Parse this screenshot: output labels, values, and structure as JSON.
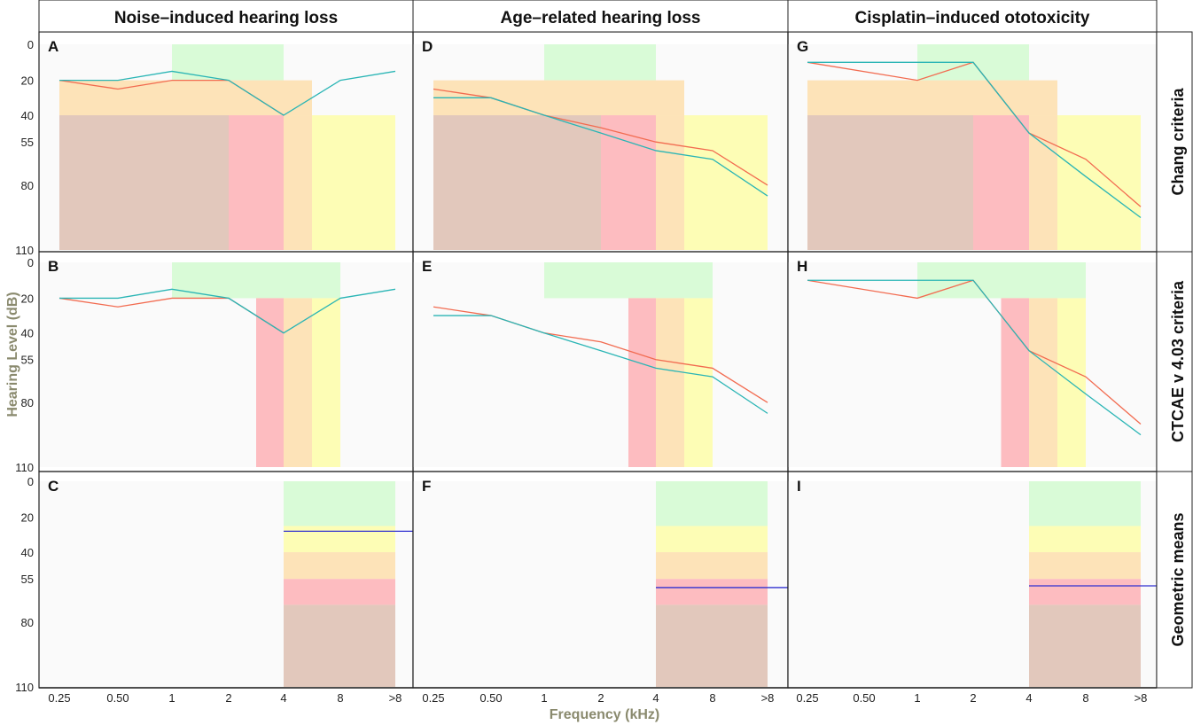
{
  "figure": {
    "column_titles": [
      "Noise–induced hearing loss",
      "Age–related hearing loss",
      "Cisplatin–induced ototoxicity"
    ],
    "row_titles": [
      "Chang criteria",
      "CTCAE v 4.03 criteria",
      "Geometric means"
    ],
    "y_axis_title": "Hearing Level (dB)",
    "x_axis_title": "Frequency (kHz)",
    "x_ticks": [
      "0.25",
      "0.50",
      "1",
      "2",
      "4",
      "8",
      ">8"
    ],
    "y_ticks": [
      "0",
      "20",
      "40",
      "55",
      "80",
      "110"
    ],
    "colors": {
      "green": "#d9fbd7",
      "yellow": "#fdfdb5",
      "orange": "#fde3b8",
      "red": "#fdbcc0",
      "brown": "#e2c8bc",
      "panel_bg": "#fafafa",
      "line_red": "#f26b50",
      "line_teal": "#2ab5b5",
      "line_blue": "#3030d0"
    }
  },
  "chart_data": [
    {
      "panel": "A",
      "type": "line",
      "row": 0,
      "col": 0,
      "x": [
        "0.25",
        "0.50",
        "1",
        "2",
        "4",
        "8",
        ">8"
      ],
      "series": [
        {
          "color": "red",
          "values": [
            20,
            25,
            20,
            20,
            40,
            null,
            null
          ]
        },
        {
          "color": "teal",
          "values": [
            20,
            20,
            15,
            20,
            40,
            20,
            15
          ]
        }
      ],
      "bands": [
        {
          "x0": "1",
          "x1": "4",
          "y0": 0,
          "y1": 20,
          "color": "green"
        },
        {
          "x0": "0.25",
          "x1": "4/8",
          "y0": 20,
          "y1": 40,
          "color": "orange"
        },
        {
          "x0": "0.25",
          "x1": ">8",
          "y0": 40,
          "y1": 110,
          "color": "yellow"
        },
        {
          "x0": "0.25",
          "x1": "4/8",
          "y0": 40,
          "y1": 110,
          "color": "orange"
        },
        {
          "x0": "2",
          "x1": "4",
          "y0": 40,
          "y1": 110,
          "color": "red"
        },
        {
          "x0": "0.25",
          "x1": "2",
          "y0": 40,
          "y1": 110,
          "color": "brown"
        }
      ]
    },
    {
      "panel": "D",
      "type": "line",
      "row": 0,
      "col": 1,
      "x": [
        "0.25",
        "0.50",
        "1",
        "2",
        "4",
        "8",
        ">8"
      ],
      "series": [
        {
          "color": "red",
          "values": [
            25,
            30,
            40,
            47,
            55,
            60,
            80
          ]
        },
        {
          "color": "teal",
          "values": [
            30,
            30,
            40,
            50,
            60,
            65,
            85
          ]
        }
      ],
      "bands": [
        {
          "x0": "1",
          "x1": "4",
          "y0": 0,
          "y1": 20,
          "color": "green"
        },
        {
          "x0": "0.25",
          "x1": "4/8",
          "y0": 20,
          "y1": 40,
          "color": "orange"
        },
        {
          "x0": "0.25",
          "x1": ">8",
          "y0": 40,
          "y1": 110,
          "color": "yellow"
        },
        {
          "x0": "0.25",
          "x1": "4/8",
          "y0": 40,
          "y1": 110,
          "color": "orange"
        },
        {
          "x0": "2",
          "x1": "4",
          "y0": 40,
          "y1": 110,
          "color": "red"
        },
        {
          "x0": "0.25",
          "x1": "2",
          "y0": 40,
          "y1": 110,
          "color": "brown"
        }
      ]
    },
    {
      "panel": "G",
      "type": "line",
      "row": 0,
      "col": 2,
      "x": [
        "0.25",
        "0.50",
        "1",
        "2",
        "4",
        "8",
        ">8"
      ],
      "series": [
        {
          "color": "red",
          "values": [
            10,
            null,
            20,
            10,
            50,
            65,
            90
          ]
        },
        {
          "color": "teal",
          "values": [
            10,
            null,
            10,
            10,
            50,
            75,
            95
          ]
        }
      ],
      "bands": [
        {
          "x0": "1",
          "x1": "4",
          "y0": 0,
          "y1": 20,
          "color": "green"
        },
        {
          "x0": "0.25",
          "x1": "4/8",
          "y0": 20,
          "y1": 40,
          "color": "orange"
        },
        {
          "x0": "0.25",
          "x1": ">8",
          "y0": 40,
          "y1": 110,
          "color": "yellow"
        },
        {
          "x0": "0.25",
          "x1": "4/8",
          "y0": 40,
          "y1": 110,
          "color": "orange"
        },
        {
          "x0": "2",
          "x1": "4",
          "y0": 40,
          "y1": 110,
          "color": "red"
        },
        {
          "x0": "0.25",
          "x1": "2",
          "y0": 40,
          "y1": 110,
          "color": "brown"
        }
      ]
    },
    {
      "panel": "B",
      "type": "line",
      "row": 1,
      "col": 0,
      "x": [
        "0.25",
        "0.50",
        "1",
        "2",
        "4",
        "8",
        ">8"
      ],
      "series": [
        {
          "color": "red",
          "values": [
            20,
            25,
            20,
            20,
            40,
            null,
            null
          ]
        },
        {
          "color": "teal",
          "values": [
            20,
            20,
            15,
            20,
            40,
            20,
            15
          ]
        }
      ],
      "bands": [
        {
          "x0": "1",
          "x1": "8",
          "y0": 0,
          "y1": 20,
          "color": "green"
        },
        {
          "x0": "2/4",
          "x1": "8",
          "y0": 20,
          "y1": 110,
          "color": "yellow"
        },
        {
          "x0": "2/4",
          "x1": "4/8",
          "y0": 20,
          "y1": 110,
          "color": "orange"
        },
        {
          "x0": "2/4",
          "x1": "4",
          "y0": 20,
          "y1": 110,
          "color": "red"
        }
      ]
    },
    {
      "panel": "E",
      "type": "line",
      "row": 1,
      "col": 1,
      "x": [
        "0.25",
        "0.50",
        "1",
        "2",
        "4",
        "8",
        ">8"
      ],
      "series": [
        {
          "color": "red",
          "values": [
            25,
            30,
            40,
            45,
            55,
            60,
            80
          ]
        },
        {
          "color": "teal",
          "values": [
            30,
            30,
            40,
            50,
            60,
            65,
            85
          ]
        }
      ],
      "bands": [
        {
          "x0": "1",
          "x1": "8",
          "y0": 0,
          "y1": 20,
          "color": "green"
        },
        {
          "x0": "2/4",
          "x1": "8",
          "y0": 20,
          "y1": 110,
          "color": "yellow"
        },
        {
          "x0": "2/4",
          "x1": "4/8",
          "y0": 20,
          "y1": 110,
          "color": "orange"
        },
        {
          "x0": "2/4",
          "x1": "4",
          "y0": 20,
          "y1": 110,
          "color": "red"
        }
      ]
    },
    {
      "panel": "H",
      "type": "line",
      "row": 1,
      "col": 2,
      "x": [
        "0.25",
        "0.50",
        "1",
        "2",
        "4",
        "8",
        ">8"
      ],
      "series": [
        {
          "color": "red",
          "values": [
            10,
            null,
            20,
            10,
            50,
            65,
            90
          ]
        },
        {
          "color": "teal",
          "values": [
            10,
            null,
            10,
            10,
            50,
            75,
            95
          ]
        }
      ],
      "bands": [
        {
          "x0": "1",
          "x1": "8",
          "y0": 0,
          "y1": 20,
          "color": "green"
        },
        {
          "x0": "2/4",
          "x1": "8",
          "y0": 20,
          "y1": 110,
          "color": "yellow"
        },
        {
          "x0": "2/4",
          "x1": "4/8",
          "y0": 20,
          "y1": 110,
          "color": "orange"
        },
        {
          "x0": "2/4",
          "x1": "4",
          "y0": 20,
          "y1": 110,
          "color": "red"
        }
      ]
    },
    {
      "panel": "C",
      "type": "line",
      "row": 2,
      "col": 0,
      "x": [
        "0.25",
        "0.50",
        "1",
        "2",
        "4",
        "8",
        ">8"
      ],
      "series": [
        {
          "color": "blue",
          "values": [
            null,
            null,
            null,
            null,
            28,
            28,
            28
          ]
        }
      ],
      "bands": [
        {
          "x0": "4",
          "x1": ">8",
          "y0": 0,
          "y1": 25,
          "color": "green"
        },
        {
          "x0": "4",
          "x1": ">8",
          "y0": 25,
          "y1": 40,
          "color": "yellow"
        },
        {
          "x0": "4",
          "x1": ">8",
          "y0": 40,
          "y1": 55,
          "color": "orange"
        },
        {
          "x0": "4",
          "x1": ">8",
          "y0": 55,
          "y1": 70,
          "color": "red"
        },
        {
          "x0": "4",
          "x1": ">8",
          "y0": 70,
          "y1": 110,
          "color": "brown"
        }
      ]
    },
    {
      "panel": "F",
      "type": "line",
      "row": 2,
      "col": 1,
      "x": [
        "0.25",
        "0.50",
        "1",
        "2",
        "4",
        "8",
        ">8"
      ],
      "series": [
        {
          "color": "blue",
          "values": [
            null,
            null,
            null,
            null,
            60,
            60,
            60
          ]
        }
      ],
      "bands": [
        {
          "x0": "4",
          "x1": ">8",
          "y0": 0,
          "y1": 25,
          "color": "green"
        },
        {
          "x0": "4",
          "x1": ">8",
          "y0": 25,
          "y1": 40,
          "color": "yellow"
        },
        {
          "x0": "4",
          "x1": ">8",
          "y0": 40,
          "y1": 55,
          "color": "orange"
        },
        {
          "x0": "4",
          "x1": ">8",
          "y0": 55,
          "y1": 70,
          "color": "red"
        },
        {
          "x0": "4",
          "x1": ">8",
          "y0": 70,
          "y1": 110,
          "color": "brown"
        }
      ]
    },
    {
      "panel": "I",
      "type": "line",
      "row": 2,
      "col": 2,
      "x": [
        "0.25",
        "0.50",
        "1",
        "2",
        "4",
        "8",
        ">8"
      ],
      "series": [
        {
          "color": "blue",
          "values": [
            null,
            null,
            null,
            null,
            59,
            59,
            59
          ]
        }
      ],
      "bands": [
        {
          "x0": "4",
          "x1": ">8",
          "y0": 0,
          "y1": 25,
          "color": "green"
        },
        {
          "x0": "4",
          "x1": ">8",
          "y0": 25,
          "y1": 40,
          "color": "yellow"
        },
        {
          "x0": "4",
          "x1": ">8",
          "y0": 40,
          "y1": 55,
          "color": "orange"
        },
        {
          "x0": "4",
          "x1": ">8",
          "y0": 55,
          "y1": 70,
          "color": "red"
        },
        {
          "x0": "4",
          "x1": ">8",
          "y0": 70,
          "y1": 110,
          "color": "brown"
        }
      ]
    }
  ]
}
